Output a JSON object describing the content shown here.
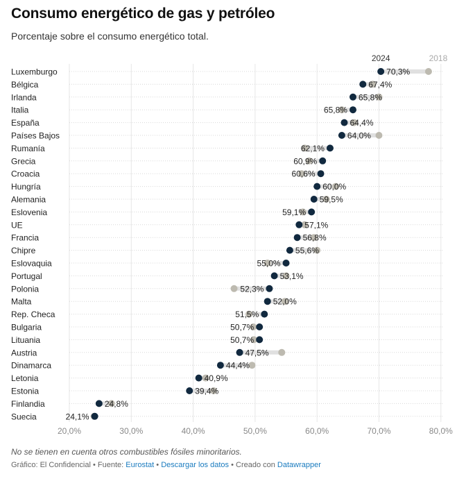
{
  "header": {
    "title": "Consumo energético de gas y petróleo",
    "subtitle": "Porcentaje sobre el consumo energético total."
  },
  "footer": {
    "note": "No se tienen en cuenta otros combustibles fósiles minoritarios.",
    "source_prefix": "Gráfico: El Confidencial • Fuente: ",
    "source_link": "Eurostat",
    "sep1": " • ",
    "download_link": "Descargar los datos",
    "created_prefix": " • Creado con ",
    "created_link": "Datawrapper"
  },
  "colors": {
    "y2024": "#11293f",
    "y2018": "#bdbab0",
    "connector": "#e0e0e0",
    "link": "#1a7bbf"
  },
  "chart_data": {
    "type": "dot-range",
    "title": "Consumo energético de gas y petróleo",
    "subtitle": "Porcentaje sobre el consumo energético total.",
    "xlim": [
      19.5,
      81
    ],
    "xticks": [
      20,
      30,
      40,
      50,
      60,
      70,
      80
    ],
    "xtick_labels": [
      "20,0%",
      "30,0%",
      "40,0%",
      "50,0%",
      "60,0%",
      "70,0%",
      "80,0%"
    ],
    "grid": true,
    "legend": [
      "2024",
      "2018"
    ],
    "categories": [
      "Luxemburgo",
      "Bélgica",
      "Irlanda",
      "Italia",
      "España",
      "Países Bajos",
      "Rumanía",
      "Grecia",
      "Croacia",
      "Hungría",
      "Alemania",
      "Eslovenia",
      "UE",
      "Francia",
      "Chipre",
      "Eslovaquia",
      "Portugal",
      "Polonia",
      "Malta",
      "Rep. Checa",
      "Bulgaria",
      "Lituania",
      "Austria",
      "Dinamarca",
      "Letonia",
      "Estonia",
      "Finlandia",
      "Suecia"
    ],
    "series": [
      {
        "name": "2024",
        "values": [
          70.3,
          67.4,
          65.8,
          65.8,
          64.4,
          64.0,
          62.1,
          60.9,
          60.6,
          60.0,
          59.5,
          59.1,
          57.1,
          56.8,
          55.6,
          55.0,
          53.1,
          52.3,
          52.0,
          51.5,
          50.7,
          50.7,
          47.5,
          44.4,
          40.9,
          39.4,
          24.8,
          24.1
        ],
        "labels": [
          "70,3%",
          "67,4%",
          "65,8%",
          "65,8%",
          "64,4%",
          "64,0%",
          "62,1%",
          "60,9%",
          "60,6%",
          "60,0%",
          "59,5%",
          "59,1%",
          "57,1%",
          "56,8%",
          "55,6%",
          "55,0%",
          "53,1%",
          "52,3%",
          "52,0%",
          "51,5%",
          "50,7%",
          "50,7%",
          "47,5%",
          "44,4%",
          "40,9%",
          "39,4%",
          "24,8%",
          "24,1%"
        ]
      },
      {
        "name": "2018",
        "values": [
          78.0,
          69.0,
          70.0,
          64.0,
          66.0,
          70.0,
          58.0,
          58.7,
          57.5,
          63.0,
          61.5,
          57.7,
          58.0,
          59.5,
          60.0,
          52.0,
          55.0,
          46.6,
          54.8,
          49.0,
          49.7,
          49.8,
          54.3,
          49.5,
          42.0,
          43.3,
          26.8,
          24.0
        ]
      }
    ]
  }
}
